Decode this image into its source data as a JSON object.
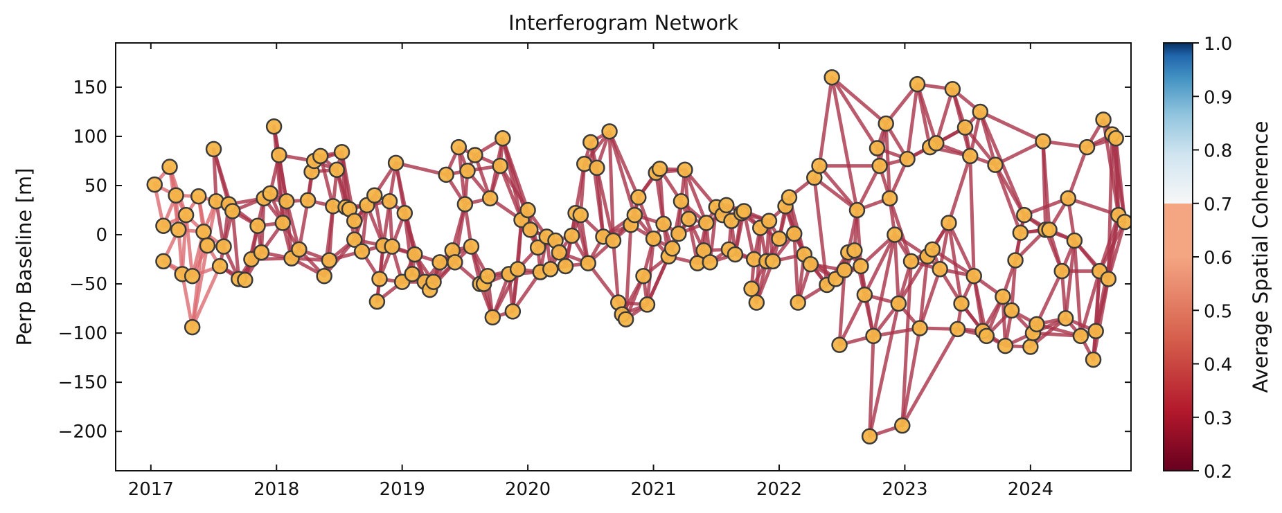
{
  "chart_data": {
    "type": "scatter",
    "title": "Interferogram Network",
    "xlabel": "",
    "ylabel": "Perp Baseline [m]",
    "xlim": [
      2016.72,
      2024.8
    ],
    "ylim": [
      -240,
      195
    ],
    "xticks": [
      2017,
      2018,
      2019,
      2020,
      2021,
      2022,
      2023,
      2024
    ],
    "yticks": [
      -200,
      -150,
      -100,
      -50,
      0,
      50,
      100,
      150
    ],
    "grid": false,
    "colorbar": {
      "label": "Average Spatial Coherence",
      "range": [
        0.2,
        1.0
      ],
      "ticks": [
        0.2,
        0.3,
        0.4,
        0.5,
        0.6,
        0.7,
        0.8,
        0.9,
        1.0
      ],
      "colormap": "RdBu"
    },
    "point_color": "#f5b548",
    "edge_color": "#a83248",
    "nodes": [
      [
        2017.03,
        51
      ],
      [
        2017.15,
        69
      ],
      [
        2017.1,
        9
      ],
      [
        2017.1,
        -27
      ],
      [
        2017.2,
        40
      ],
      [
        2017.22,
        5
      ],
      [
        2017.25,
        -40
      ],
      [
        2017.28,
        20
      ],
      [
        2017.33,
        -42
      ],
      [
        2017.33,
        -94
      ],
      [
        2017.38,
        39
      ],
      [
        2017.42,
        3
      ],
      [
        2017.45,
        -11
      ],
      [
        2017.5,
        87
      ],
      [
        2017.52,
        34
      ],
      [
        2017.55,
        -32
      ],
      [
        2017.58,
        -12
      ],
      [
        2017.62,
        31
      ],
      [
        2017.65,
        24
      ],
      [
        2017.7,
        -45
      ],
      [
        2017.75,
        -46
      ],
      [
        2017.8,
        -25
      ],
      [
        2017.85,
        9
      ],
      [
        2017.9,
        37
      ],
      [
        2017.88,
        -18
      ],
      [
        2017.95,
        42
      ],
      [
        2017.98,
        110
      ],
      [
        2018.02,
        81
      ],
      [
        2018.05,
        12
      ],
      [
        2018.08,
        34
      ],
      [
        2018.12,
        -24
      ],
      [
        2018.18,
        -15
      ],
      [
        2018.25,
        35
      ],
      [
        2018.28,
        64
      ],
      [
        2018.3,
        75
      ],
      [
        2018.35,
        80
      ],
      [
        2018.38,
        -42
      ],
      [
        2018.42,
        -26
      ],
      [
        2018.45,
        29
      ],
      [
        2018.48,
        66
      ],
      [
        2018.52,
        84
      ],
      [
        2018.55,
        28
      ],
      [
        2018.58,
        26
      ],
      [
        2018.62,
        14
      ],
      [
        2018.62,
        -5
      ],
      [
        2018.68,
        -17
      ],
      [
        2018.72,
        30
      ],
      [
        2018.78,
        40
      ],
      [
        2018.8,
        -68
      ],
      [
        2018.82,
        -45
      ],
      [
        2018.85,
        -11
      ],
      [
        2018.9,
        34
      ],
      [
        2018.92,
        -12
      ],
      [
        2018.95,
        73
      ],
      [
        2019.0,
        -48
      ],
      [
        2019.02,
        22
      ],
      [
        2019.08,
        -40
      ],
      [
        2019.1,
        -20
      ],
      [
        2019.18,
        -48
      ],
      [
        2019.22,
        -56
      ],
      [
        2019.25,
        -48
      ],
      [
        2019.3,
        -28
      ],
      [
        2019.35,
        61
      ],
      [
        2019.4,
        -16
      ],
      [
        2019.42,
        -28
      ],
      [
        2019.45,
        89
      ],
      [
        2019.5,
        31
      ],
      [
        2019.52,
        65
      ],
      [
        2019.55,
        -12
      ],
      [
        2019.58,
        81
      ],
      [
        2019.62,
        -50
      ],
      [
        2019.65,
        -50
      ],
      [
        2019.68,
        -42
      ],
      [
        2019.7,
        37
      ],
      [
        2019.72,
        -84
      ],
      [
        2019.78,
        70
      ],
      [
        2019.8,
        98
      ],
      [
        2019.85,
        -40
      ],
      [
        2019.88,
        -78
      ],
      [
        2019.92,
        -35
      ],
      [
        2019.95,
        15
      ],
      [
        2020.0,
        25
      ],
      [
        2020.02,
        5
      ],
      [
        2020.08,
        -13
      ],
      [
        2020.1,
        -38
      ],
      [
        2020.15,
        -2
      ],
      [
        2020.18,
        -35
      ],
      [
        2020.22,
        -6
      ],
      [
        2020.25,
        -18
      ],
      [
        2020.3,
        -32
      ],
      [
        2020.35,
        -1
      ],
      [
        2020.38,
        22
      ],
      [
        2020.42,
        20
      ],
      [
        2020.45,
        72
      ],
      [
        2020.48,
        -29
      ],
      [
        2020.5,
        94
      ],
      [
        2020.55,
        68
      ],
      [
        2020.6,
        -2
      ],
      [
        2020.65,
        105
      ],
      [
        2020.68,
        -6
      ],
      [
        2020.72,
        -69
      ],
      [
        2020.75,
        -81
      ],
      [
        2020.78,
        -86
      ],
      [
        2020.82,
        10
      ],
      [
        2020.85,
        20
      ],
      [
        2020.88,
        38
      ],
      [
        2020.92,
        -42
      ],
      [
        2020.95,
        -71
      ],
      [
        2021.0,
        -4
      ],
      [
        2021.02,
        63
      ],
      [
        2021.05,
        67
      ],
      [
        2021.08,
        11
      ],
      [
        2021.12,
        -22
      ],
      [
        2021.15,
        -14
      ],
      [
        2021.2,
        1
      ],
      [
        2021.22,
        34
      ],
      [
        2021.25,
        66
      ],
      [
        2021.28,
        16
      ],
      [
        2021.35,
        -29
      ],
      [
        2021.4,
        -16
      ],
      [
        2021.42,
        12
      ],
      [
        2021.45,
        -28
      ],
      [
        2021.5,
        28
      ],
      [
        2021.55,
        20
      ],
      [
        2021.58,
        30
      ],
      [
        2021.6,
        -15
      ],
      [
        2021.62,
        14
      ],
      [
        2021.65,
        -20
      ],
      [
        2021.7,
        22
      ],
      [
        2021.72,
        24
      ],
      [
        2021.78,
        -55
      ],
      [
        2021.8,
        -25
      ],
      [
        2021.82,
        -69
      ],
      [
        2021.85,
        7
      ],
      [
        2021.9,
        -27
      ],
      [
        2021.92,
        14
      ],
      [
        2021.95,
        -27
      ],
      [
        2022.0,
        -4
      ],
      [
        2022.05,
        29
      ],
      [
        2022.08,
        38
      ],
      [
        2022.12,
        1
      ],
      [
        2022.15,
        -69
      ],
      [
        2022.2,
        -20
      ],
      [
        2022.25,
        -30
      ],
      [
        2022.28,
        58
      ],
      [
        2022.32,
        70
      ],
      [
        2022.38,
        -51
      ],
      [
        2022.42,
        160
      ],
      [
        2022.45,
        -45
      ],
      [
        2022.48,
        -112
      ],
      [
        2022.52,
        -36
      ],
      [
        2022.55,
        -18
      ],
      [
        2022.6,
        -16
      ],
      [
        2022.62,
        25
      ],
      [
        2022.65,
        -32
      ],
      [
        2022.68,
        -61
      ],
      [
        2022.72,
        -205
      ],
      [
        2022.75,
        -103
      ],
      [
        2022.78,
        88
      ],
      [
        2022.8,
        70
      ],
      [
        2022.85,
        113
      ],
      [
        2022.88,
        37
      ],
      [
        2022.92,
        0
      ],
      [
        2022.95,
        -70
      ],
      [
        2022.98,
        -194
      ],
      [
        2023.02,
        77
      ],
      [
        2023.05,
        -27
      ],
      [
        2023.1,
        153
      ],
      [
        2023.12,
        -95
      ],
      [
        2023.18,
        -22
      ],
      [
        2023.2,
        89
      ],
      [
        2023.22,
        -15
      ],
      [
        2023.25,
        93
      ],
      [
        2023.28,
        -35
      ],
      [
        2023.35,
        12
      ],
      [
        2023.38,
        148
      ],
      [
        2023.42,
        -96
      ],
      [
        2023.45,
        -70
      ],
      [
        2023.48,
        109
      ],
      [
        2023.52,
        80
      ],
      [
        2023.55,
        -42
      ],
      [
        2023.6,
        125
      ],
      [
        2023.62,
        -98
      ],
      [
        2023.65,
        -103
      ],
      [
        2023.72,
        71
      ],
      [
        2023.78,
        -63
      ],
      [
        2023.8,
        -113
      ],
      [
        2023.85,
        -77
      ],
      [
        2023.88,
        -26
      ],
      [
        2023.92,
        2
      ],
      [
        2023.95,
        20
      ],
      [
        2024.0,
        -114
      ],
      [
        2024.02,
        -100
      ],
      [
        2024.05,
        -91
      ],
      [
        2024.1,
        95
      ],
      [
        2024.12,
        5
      ],
      [
        2024.15,
        5
      ],
      [
        2024.25,
        -37
      ],
      [
        2024.28,
        -85
      ],
      [
        2024.3,
        37
      ],
      [
        2024.35,
        -6
      ],
      [
        2024.4,
        -103
      ],
      [
        2024.45,
        89
      ],
      [
        2024.5,
        -127
      ],
      [
        2024.52,
        -98
      ],
      [
        2024.55,
        -37
      ],
      [
        2024.58,
        117
      ],
      [
        2024.62,
        -45
      ],
      [
        2024.65,
        102
      ],
      [
        2024.68,
        98
      ],
      [
        2024.7,
        20
      ],
      [
        2024.75,
        13
      ]
    ]
  }
}
